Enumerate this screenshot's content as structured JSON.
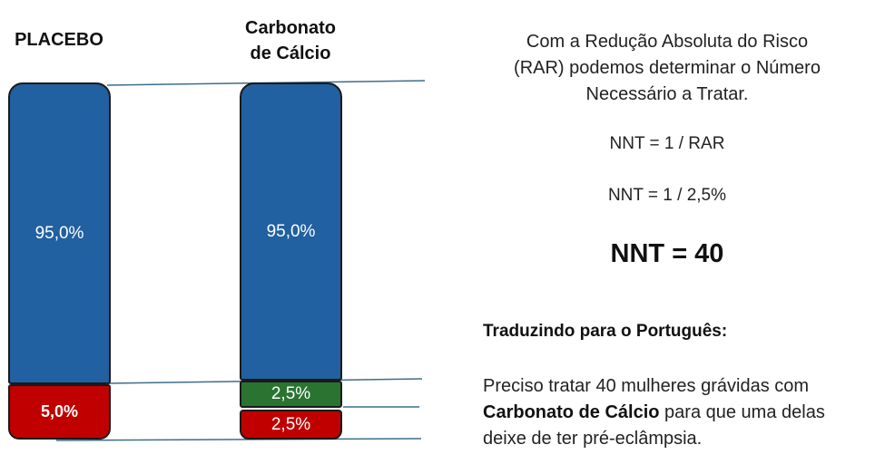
{
  "colors": {
    "blue": "#2160A1",
    "red": "#C00000",
    "green": "#2A7432",
    "guide_line": "#3C6E8C"
  },
  "labels": {
    "placebo": "PLACEBO",
    "calcium_line1": "Carbonato",
    "calcium_line2": "de Cálcio"
  },
  "placebo_bar": {
    "top_value": "95,0%",
    "bottom_value": "5,0%"
  },
  "calcium_bar": {
    "top_value": "95,0%",
    "middle_value": "2,5%",
    "bottom_value": "2,5%"
  },
  "explanation": {
    "intro_line1": "Com a Redução Absoluta do Risco",
    "intro_line2": "(RAR) podemos determinar o Número",
    "intro_line3": "Necessário a Tratar.",
    "formula1": "NNT = 1 / RAR",
    "formula2": "NNT = 1 / 2,5%",
    "result": "NNT = 40",
    "translation_title": "Traduzindo para o Português:",
    "conclusion_part1": "Preciso tratar 40 mulheres grávidas com",
    "conclusion_bold": "Carbonato de Cálcio",
    "conclusion_part2": " para que uma delas",
    "conclusion_part3": "deixe de ter pré-eclâmpsia."
  }
}
